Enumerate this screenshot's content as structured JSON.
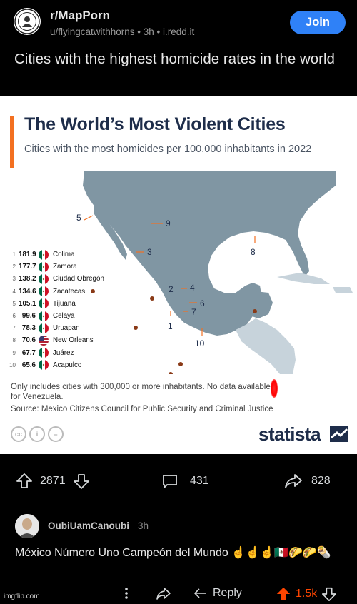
{
  "post": {
    "subreddit": "r/MapPorn",
    "meta": "u/flyingcatwithhorns • 3h • i.redd.it",
    "join_label": "Join",
    "title": "Cities with the highest homicide rates in the world"
  },
  "infographic": {
    "title": "The World’s Most Violent Cities",
    "subtitle": "Cities with the most homicides per 100,000 inhabitants in 2022",
    "map_labels": [
      "1",
      "2",
      "3",
      "4",
      "5",
      "6",
      "7",
      "8",
      "9",
      "10"
    ],
    "rankings": [
      {
        "rank": "1",
        "value": "181.9",
        "flag": "mx",
        "city": "Colima"
      },
      {
        "rank": "2",
        "value": "177.7",
        "flag": "mx",
        "city": "Zamora"
      },
      {
        "rank": "3",
        "value": "138.2",
        "flag": "mx",
        "city": "Ciudad Obregón"
      },
      {
        "rank": "4",
        "value": "134.6",
        "flag": "mx",
        "city": "Zacatecas"
      },
      {
        "rank": "5",
        "value": "105.1",
        "flag": "mx",
        "city": "Tijuana"
      },
      {
        "rank": "6",
        "value": "99.6",
        "flag": "mx",
        "city": "Celaya"
      },
      {
        "rank": "7",
        "value": "78.3",
        "flag": "mx",
        "city": "Uruapan"
      },
      {
        "rank": "8",
        "value": "70.6",
        "flag": "us",
        "city": "New Orleans"
      },
      {
        "rank": "9",
        "value": "67.7",
        "flag": "mx",
        "city": "Juárez"
      },
      {
        "rank": "10",
        "value": "65.6",
        "flag": "mx",
        "city": "Acapulco"
      }
    ],
    "note": "Only includes cities with 300,000 or more inhabitants. No data available for Venezuela.",
    "source": "Source: Mexico Citizens Council for Public Security and Criminal Justice",
    "brand": "statista",
    "license_icons": [
      "cc",
      "i",
      "="
    ],
    "colors": {
      "accent": "#f37021",
      "land": "#8096a3",
      "land_light": "#c7d3db",
      "marker": "#8a3a17",
      "title": "#1e2d4a"
    }
  },
  "actions": {
    "upvotes": "2871",
    "comments": "431",
    "shares": "828"
  },
  "comment": {
    "username": "OubiUamCanoubi",
    "time": "3h",
    "text": "México Número Uno Campeón del Mundo ☝️☝️☝️🇲🇽🌮🌮🌯",
    "reply_label": "Reply",
    "score": "1.5k"
  },
  "watermark": "imgflip.com"
}
